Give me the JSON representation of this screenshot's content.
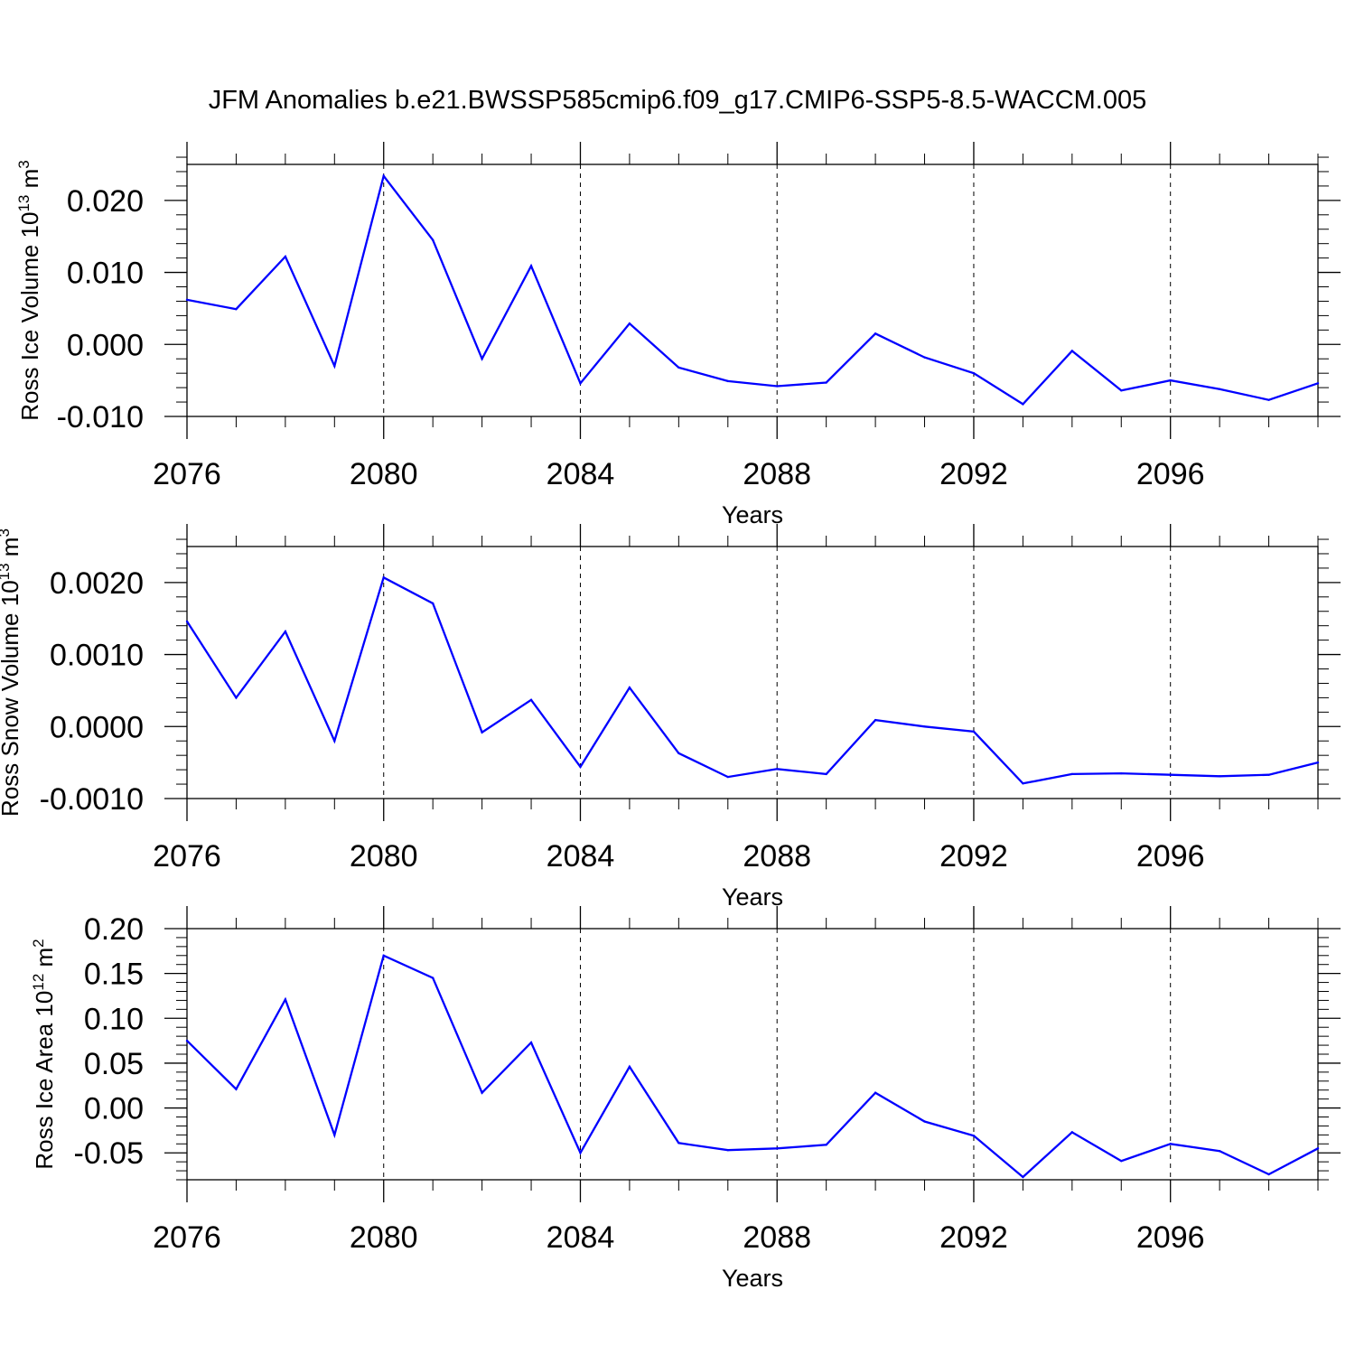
{
  "title": "JFM Anomalies b.e21.BWSSP585cmip6.f09_g17.CMIP6-SSP5-8.5-WACCM.005",
  "colors": {
    "line": "#0000ff",
    "axis": "#000000",
    "grid": "#000000"
  },
  "chart_data": [
    {
      "type": "line",
      "title": "JFM Anomalies b.e21.BWSSP585cmip6.f09_g17.CMIP6-SSP5-8.5-WACCM.005",
      "xlabel": "Years",
      "ylabel": {
        "prefix": "Ross Ice Volume 10",
        "exp1": "13",
        "mid": " m",
        "exp2": "3"
      },
      "xlim": [
        2076,
        2099
      ],
      "ylim": [
        -0.01,
        0.025
      ],
      "xticks": [
        2076,
        2080,
        2084,
        2088,
        2092,
        2096
      ],
      "xtick_labels": [
        "2076",
        "2080",
        "2084",
        "2088",
        "2092",
        "2096"
      ],
      "yticks": [
        -0.01,
        0.0,
        0.01,
        0.02
      ],
      "ytick_labels": [
        "-0.010",
        "0.000",
        "0.010",
        "0.020"
      ],
      "yminor_step": 0.002,
      "vgrid": [
        2080,
        2084,
        2088,
        2092,
        2096
      ],
      "x": [
        2076,
        2077,
        2078,
        2079,
        2080,
        2081,
        2082,
        2083,
        2084,
        2085,
        2086,
        2087,
        2088,
        2089,
        2090,
        2091,
        2092,
        2093,
        2094,
        2095,
        2096,
        2097,
        2098,
        2099
      ],
      "series": [
        {
          "name": "Ross Ice Volume",
          "values": [
            0.0062,
            0.0049,
            0.0122,
            -0.003,
            0.0234,
            0.0145,
            -0.002,
            0.0109,
            -0.0054,
            0.0029,
            -0.0032,
            -0.0051,
            -0.0058,
            -0.0053,
            0.0015,
            -0.0018,
            -0.004,
            -0.0083,
            -0.0009,
            -0.0064,
            -0.005,
            -0.0062,
            -0.0077,
            -0.0054
          ]
        }
      ]
    },
    {
      "type": "line",
      "xlabel": "Years",
      "ylabel": {
        "prefix": "Ross Snow Volume 10",
        "exp1": "13",
        "mid": " m",
        "exp2": "3"
      },
      "xlim": [
        2076,
        2099
      ],
      "ylim": [
        -0.001,
        0.0025
      ],
      "xticks": [
        2076,
        2080,
        2084,
        2088,
        2092,
        2096
      ],
      "xtick_labels": [
        "2076",
        "2080",
        "2084",
        "2088",
        "2092",
        "2096"
      ],
      "yticks": [
        -0.001,
        0.0,
        0.001,
        0.002
      ],
      "ytick_labels": [
        "-0.0010",
        "0.0000",
        "0.0010",
        "0.0020"
      ],
      "yminor_step": 0.0002,
      "vgrid": [
        2080,
        2084,
        2088,
        2092,
        2096
      ],
      "x": [
        2076,
        2077,
        2078,
        2079,
        2080,
        2081,
        2082,
        2083,
        2084,
        2085,
        2086,
        2087,
        2088,
        2089,
        2090,
        2091,
        2092,
        2093,
        2094,
        2095,
        2096,
        2097,
        2098,
        2099
      ],
      "series": [
        {
          "name": "Ross Snow Volume",
          "values": [
            0.00146,
            0.0004,
            0.00132,
            -0.0002,
            0.00207,
            0.00171,
            -8e-05,
            0.00037,
            -0.00056,
            0.00054,
            -0.00037,
            -0.0007,
            -0.00059,
            -0.00066,
            9e-05,
            0.0,
            -7e-05,
            -0.00079,
            -0.00066,
            -0.00065,
            -0.00067,
            -0.00069,
            -0.00067,
            -0.0005
          ]
        }
      ]
    },
    {
      "type": "line",
      "xlabel": "Years",
      "ylabel": {
        "prefix": "Ross Ice Area 10",
        "exp1": "12",
        "mid": " m",
        "exp2": "2"
      },
      "xlim": [
        2076,
        2099
      ],
      "ylim": [
        -0.08,
        0.2
      ],
      "xticks": [
        2076,
        2080,
        2084,
        2088,
        2092,
        2096
      ],
      "xtick_labels": [
        "2076",
        "2080",
        "2084",
        "2088",
        "2092",
        "2096"
      ],
      "yticks": [
        -0.05,
        0.0,
        0.05,
        0.1,
        0.15,
        0.2
      ],
      "ytick_labels": [
        "-0.05",
        "0.00",
        "0.05",
        "0.10",
        "0.15",
        "0.20"
      ],
      "yminor_step": 0.01,
      "vgrid": [
        2080,
        2084,
        2088,
        2092,
        2096
      ],
      "x": [
        2076,
        2077,
        2078,
        2079,
        2080,
        2081,
        2082,
        2083,
        2084,
        2085,
        2086,
        2087,
        2088,
        2089,
        2090,
        2091,
        2092,
        2093,
        2094,
        2095,
        2096,
        2097,
        2098,
        2099
      ],
      "series": [
        {
          "name": "Ross Ice Area",
          "values": [
            0.075,
            0.021,
            0.121,
            -0.03,
            0.17,
            0.145,
            0.017,
            0.073,
            -0.05,
            0.046,
            -0.039,
            -0.047,
            -0.045,
            -0.041,
            0.017,
            -0.015,
            -0.031,
            -0.077,
            -0.027,
            -0.059,
            -0.04,
            -0.048,
            -0.074,
            -0.045
          ]
        }
      ]
    }
  ]
}
